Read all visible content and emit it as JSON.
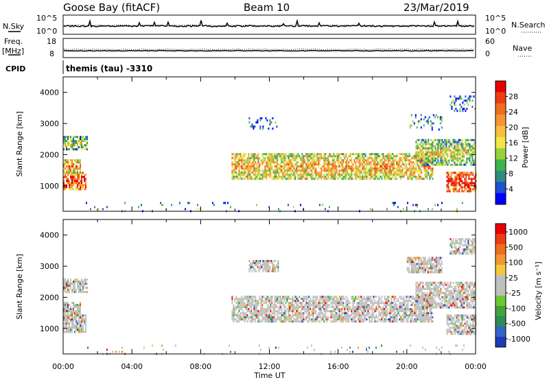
{
  "header": {
    "title": "Goose Bay (fitACF)",
    "beam": "Beam 10",
    "date": "23/Mar/2019"
  },
  "noise_panel": {
    "left_label": "N.Sky",
    "left_ticks": [
      "10^5",
      "10^0"
    ],
    "right_ticks": [
      "10^5",
      "10^0"
    ],
    "right_label": "N.Search"
  },
  "freq_panel": {
    "left_label_1": "Freq.",
    "left_label_2": "[MHz]",
    "left_ticks": [
      "18",
      "8"
    ],
    "right_ticks": [
      "60",
      "0"
    ],
    "right_label": "Nave"
  },
  "cpid": {
    "label": "CPID",
    "mode": "themis (tau) -3310"
  },
  "chart_data": [
    {
      "type": "heatmap",
      "panel": "power",
      "ylabel": "Slant Range [km]",
      "ylim": [
        180,
        4500
      ],
      "yticks": [
        1000,
        2000,
        3000,
        4000
      ],
      "xlim": [
        0,
        24
      ],
      "colorbar": {
        "label": "Power [dB]",
        "ticks": [
          4,
          8,
          12,
          16,
          20,
          24,
          28
        ],
        "colors": [
          "#0000ff",
          "#1e50d2",
          "#2d8c82",
          "#3cb450",
          "#96d23c",
          "#f0e646",
          "#fabe3c",
          "#f59632",
          "#f06e1e",
          "#eb3c14",
          "#e60000"
        ],
        "range": [
          0,
          32
        ]
      },
      "echo_regions": [
        {
          "x": [
            0.0,
            1.3
          ],
          "y": [
            870,
            1450
          ],
          "level": 0.78
        },
        {
          "x": [
            0.0,
            1.0
          ],
          "y": [
            1450,
            1850
          ],
          "level": 0.62
        },
        {
          "x": [
            0.0,
            1.4
          ],
          "y": [
            2150,
            2600
          ],
          "level": 0.35
        },
        {
          "x": [
            9.8,
            21.5
          ],
          "y": [
            1250,
            2050
          ],
          "level": 0.55
        },
        {
          "x": [
            20.5,
            24.0
          ],
          "y": [
            1700,
            2500
          ],
          "level": 0.42
        },
        {
          "x": [
            22.3,
            24.0
          ],
          "y": [
            850,
            1450
          ],
          "level": 0.85
        },
        {
          "x": [
            20.0,
            22.0
          ],
          "y": [
            2800,
            3300
          ],
          "level": 0.18
        },
        {
          "x": [
            22.5,
            24.0
          ],
          "y": [
            3400,
            3900
          ],
          "level": 0.15
        },
        {
          "x": [
            10.8,
            12.5
          ],
          "y": [
            2850,
            3200
          ],
          "level": 0.15
        },
        {
          "x": [
            1.0,
            24.0
          ],
          "y": [
            200,
            480
          ],
          "level": 0.22
        }
      ]
    },
    {
      "type": "heatmap",
      "panel": "velocity",
      "ylabel": "Slant Range [km]",
      "ylim": [
        180,
        4500
      ],
      "yticks": [
        1000,
        2000,
        3000,
        4000
      ],
      "xlim": [
        0,
        24
      ],
      "xlabel": "Time UT",
      "xticks": [
        "00:00",
        "04:00",
        "08:00",
        "12:00",
        "16:00",
        "20:00",
        "00:00"
      ],
      "colorbar": {
        "label": "Velocity [m s⁻¹]",
        "ticks": [
          "1000",
          "500",
          "100",
          "25",
          "-25",
          "-100",
          "-500",
          "-1000"
        ],
        "colors": [
          "#1e3cb4",
          "#3264c8",
          "#2d8c5a",
          "#46a03c",
          "#6ec832",
          "#c0c0c0",
          "#c0c0c0",
          "#f5c83c",
          "#f59632",
          "#f06e1e",
          "#eb3c14",
          "#e60000"
        ]
      },
      "echo_regions": [
        {
          "x": [
            0.0,
            1.3
          ],
          "y": [
            870,
            1450
          ],
          "level": 0.6
        },
        {
          "x": [
            0.0,
            1.0
          ],
          "y": [
            1450,
            1850
          ],
          "level": 0.55
        },
        {
          "x": [
            0.0,
            1.4
          ],
          "y": [
            2150,
            2600
          ],
          "level": 0.5
        },
        {
          "x": [
            9.8,
            21.5
          ],
          "y": [
            1250,
            2050
          ],
          "level": 0.5
        },
        {
          "x": [
            20.5,
            24.0
          ],
          "y": [
            1700,
            2500
          ],
          "level": 0.5
        },
        {
          "x": [
            22.3,
            24.0
          ],
          "y": [
            850,
            1450
          ],
          "level": 0.5
        },
        {
          "x": [
            20.0,
            22.0
          ],
          "y": [
            2800,
            3300
          ],
          "level": 0.5
        },
        {
          "x": [
            22.5,
            24.0
          ],
          "y": [
            3400,
            3900
          ],
          "level": 0.5
        },
        {
          "x": [
            10.8,
            12.5
          ],
          "y": [
            2850,
            3200
          ],
          "level": 0.5
        },
        {
          "x": [
            1.0,
            24.0
          ],
          "y": [
            200,
            480
          ],
          "level": 0.5
        }
      ]
    }
  ]
}
